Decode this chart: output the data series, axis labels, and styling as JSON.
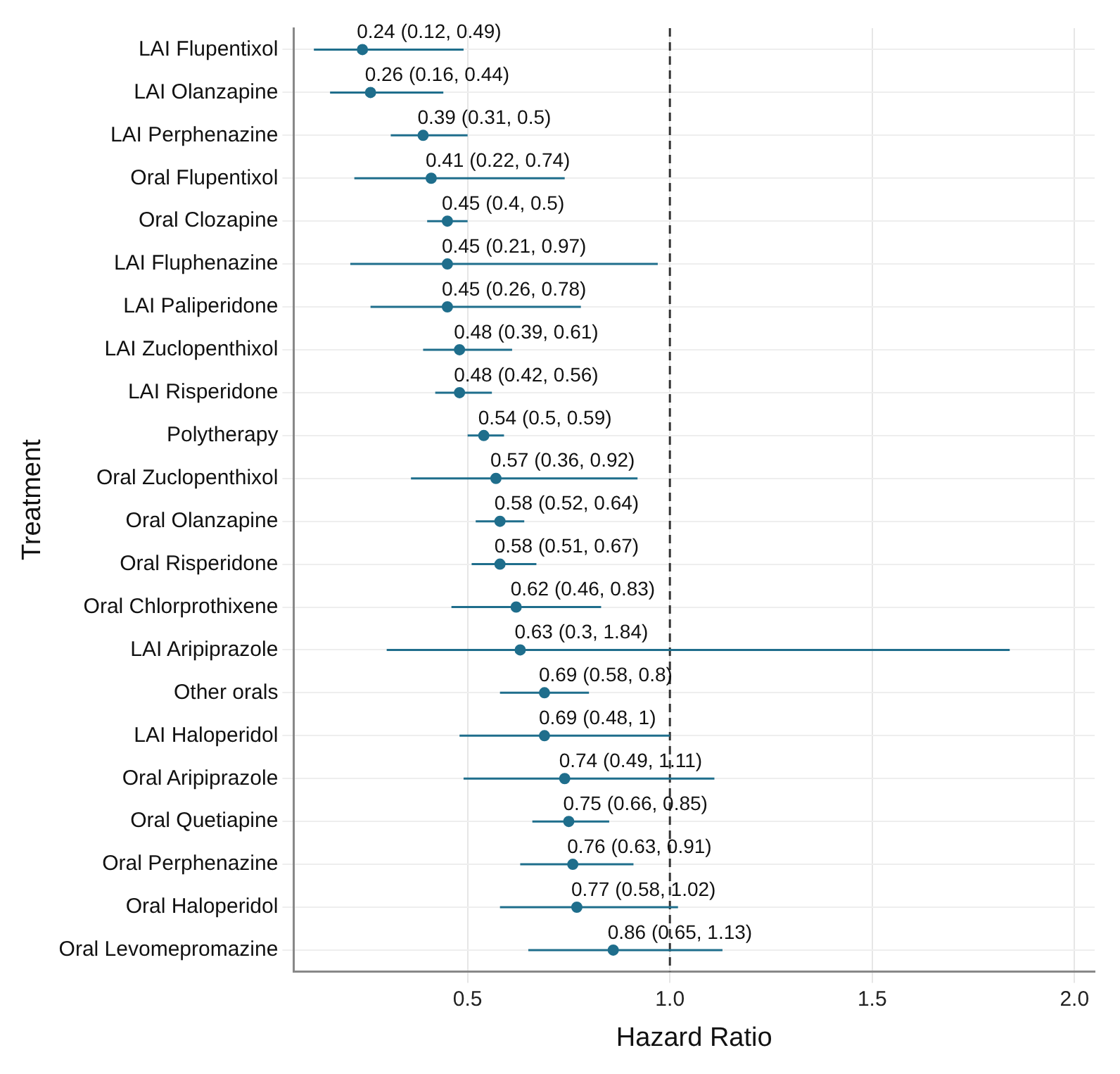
{
  "chart_data": {
    "type": "scatter",
    "orientation": "horizontal",
    "xlabel": "Hazard Ratio",
    "ylabel": "Treatment",
    "categories": [
      "LAI Flupentixol",
      "LAI Olanzapine",
      "LAI Perphenazine",
      "Oral Flupentixol",
      "Oral Clozapine",
      "LAI Fluphenazine",
      "LAI Paliperidone",
      "LAI Zuclopenthixol",
      "LAI Risperidone",
      "Polytherapy",
      "Oral Zuclopenthixol",
      "Oral Olanzapine",
      "Oral Risperidone",
      "Oral Chlorprothixene",
      "LAI Aripiprazole",
      "Other orals",
      "LAI Haloperidol",
      "Oral Aripiprazole",
      "Oral Quetiapine",
      "Oral Perphenazine",
      "Oral Haloperidol",
      "Oral Levomepromazine"
    ],
    "values": [
      0.24,
      0.26,
      0.39,
      0.41,
      0.45,
      0.45,
      0.45,
      0.48,
      0.48,
      0.54,
      0.57,
      0.58,
      0.58,
      0.62,
      0.63,
      0.69,
      0.69,
      0.74,
      0.75,
      0.76,
      0.77,
      0.86
    ],
    "errors": [
      [
        0.12,
        0.49
      ],
      [
        0.16,
        0.44
      ],
      [
        0.31,
        0.5
      ],
      [
        0.22,
        0.74
      ],
      [
        0.4,
        0.5
      ],
      [
        0.21,
        0.97
      ],
      [
        0.26,
        0.78
      ],
      [
        0.39,
        0.61
      ],
      [
        0.42,
        0.56
      ],
      [
        0.5,
        0.59
      ],
      [
        0.36,
        0.92
      ],
      [
        0.52,
        0.64
      ],
      [
        0.51,
        0.67
      ],
      [
        0.46,
        0.83
      ],
      [
        0.3,
        1.84
      ],
      [
        0.58,
        0.8
      ],
      [
        0.48,
        1
      ],
      [
        0.49,
        1.11
      ],
      [
        0.66,
        0.85
      ],
      [
        0.63,
        0.91
      ],
      [
        0.58,
        1.02
      ],
      [
        0.65,
        1.13
      ]
    ],
    "value_labels": [
      "0.24 (0.12, 0.49)",
      "0.26 (0.16, 0.44)",
      "0.39 (0.31, 0.5)",
      "0.41 (0.22, 0.74)",
      "0.45 (0.4, 0.5)",
      "0.45 (0.21, 0.97)",
      "0.45 (0.26, 0.78)",
      "0.48 (0.39, 0.61)",
      "0.48 (0.42, 0.56)",
      "0.54 (0.5, 0.59)",
      "0.57 (0.36, 0.92)",
      "0.58 (0.52, 0.64)",
      "0.58 (0.51, 0.67)",
      "0.62 (0.46, 0.83)",
      "0.63 (0.3, 1.84)",
      "0.69 (0.58, 0.8)",
      "0.69 (0.48, 1)",
      "0.74 (0.49, 1.11)",
      "0.75 (0.66, 0.85)",
      "0.76 (0.63, 0.91)",
      "0.77 (0.58, 1.02)",
      "0.86 (0.65, 1.13)"
    ],
    "color": "#1f6e8c",
    "marker": "circle",
    "xlim": [
      0.07,
      2.05
    ],
    "xticks": [
      0.5,
      {
        "value": 1,
        "label": "1.0"
      },
      1.5,
      {
        "value": 2,
        "label": "2.0"
      }
    ],
    "ref_lines": [
      {
        "axis": "x",
        "value": 1,
        "line_style": "dashed"
      }
    ],
    "grid": true,
    "legend": false
  }
}
